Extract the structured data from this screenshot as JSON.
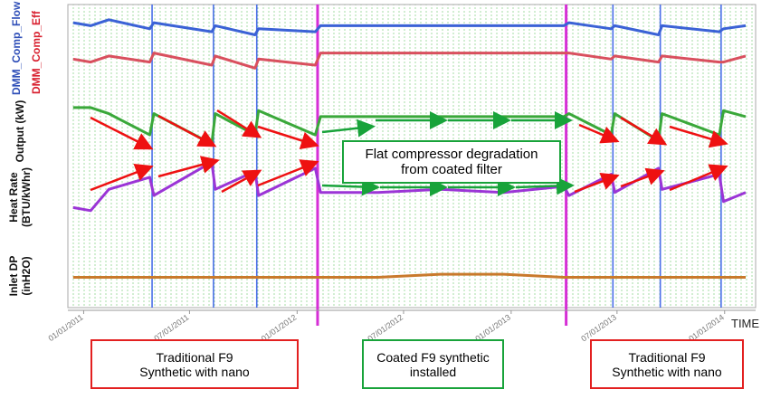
{
  "chart_data": {
    "type": "line",
    "x": [
      "12/14/2010",
      "01/13/2011",
      "02/13/2011",
      "04/24/2011",
      "05/01/2011",
      "08/08/2011",
      "08/14/2011",
      "10/21/2011",
      "10/27/2011",
      "02/01/2012",
      "02/10/2012",
      "05/18/2012",
      "09/02/2012",
      "12/19/2012",
      "04/01/2013",
      "04/10/2013",
      "06/21/2013",
      "06/27/2013",
      "09/10/2013",
      "09/16/2013",
      "12/23/2013",
      "12/30/2013",
      "02/06/2014"
    ],
    "xlim": [
      "12/05/2010",
      "02/23/2014"
    ],
    "xticks": [
      "01/01/2011",
      "07/01/2011",
      "01/01/2012",
      "07/01/2012",
      "01/01/2013",
      "07/01/2013",
      "01/01/2014"
    ],
    "xlabel": "TIME",
    "ylim": [
      0,
      100
    ],
    "series": [
      {
        "name": "DMM_Comp_Flow",
        "color": "#3b62d6",
        "label_color": "#2f4fb8",
        "values": [
          94,
          93,
          95,
          92,
          94,
          91,
          93,
          90,
          92,
          91,
          93,
          93,
          93,
          93,
          93,
          94,
          92,
          93,
          90,
          93,
          91,
          92,
          93
        ]
      },
      {
        "name": "DMM_Comp_Eff",
        "color": "#d9505e",
        "label_color": "#d8202f",
        "values": [
          82,
          81,
          83,
          81,
          84,
          80,
          83,
          79,
          82,
          80,
          84,
          84,
          84,
          84,
          84,
          84,
          82,
          83,
          81,
          83,
          81,
          81,
          83
        ]
      },
      {
        "name": "Output (kW)",
        "color": "#3aa83a",
        "label_color": "#111111",
        "values": [
          66,
          66,
          64,
          57,
          64,
          54,
          64,
          57,
          65,
          57,
          63,
          63,
          63,
          63,
          63,
          64,
          57,
          64,
          55,
          64,
          57,
          65,
          63
        ]
      },
      {
        "name": "Heat Rate (BTU/kWhr)",
        "color": "#9b35d6",
        "label_color": "#111111",
        "values": [
          33,
          32,
          39,
          43,
          37,
          48,
          39,
          45,
          37,
          46,
          38,
          38,
          39,
          38,
          40,
          37,
          44,
          38,
          46,
          39,
          44,
          35,
          38
        ]
      },
      {
        "name": "Inlet DP (inH2O)",
        "color": "#c97a2c",
        "label_color": "#111111",
        "values": [
          10,
          10,
          10,
          10,
          10,
          10,
          10,
          10,
          10,
          10,
          10,
          10,
          11,
          11,
          10,
          10,
          10,
          10,
          10,
          10,
          10,
          10,
          10
        ]
      }
    ],
    "vlines": [
      {
        "x": "04/28/2011",
        "color": "#4a6fe8"
      },
      {
        "x": "08/11/2011",
        "color": "#4a6fe8"
      },
      {
        "x": "10/24/2011",
        "color": "#4a6fe8"
      },
      {
        "x": "02/05/2012",
        "color": "#d62fd6"
      },
      {
        "x": "04/05/2013",
        "color": "#d62fd6"
      },
      {
        "x": "06/24/2013",
        "color": "#4a6fe8"
      },
      {
        "x": "09/13/2013",
        "color": "#4a6fe8"
      },
      {
        "x": "12/26/2013",
        "color": "#4a6fe8"
      }
    ],
    "annotation": "Flat compressor degradation from coated filter",
    "periods": [
      "Traditional F9 Synthetic with nano",
      "Coated F9 synthetic installed",
      "Traditional F9 Synthetic with nano"
    ]
  }
}
